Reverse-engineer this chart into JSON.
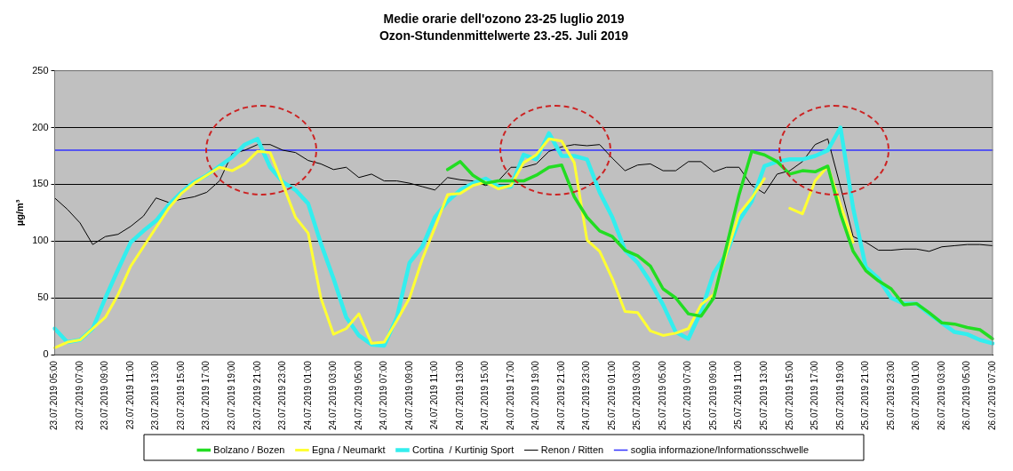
{
  "chart_data": {
    "type": "line",
    "title": "Medie orarie dell'ozono 23-25 luglio 2019",
    "subtitle": "Ozon-Stundenmittelwerte 23.-25. Juli 2019",
    "ylabel": "µg/m³",
    "categories": [
      "23.07.2019 05:00",
      null,
      "23.07.2019 07:00",
      null,
      "23.07.2019 09:00",
      null,
      "23.07.2019 11:00",
      null,
      "23.07.2019 13:00",
      null,
      "23.07.2019 15:00",
      null,
      "23.07.2019 17:00",
      null,
      "23.07.2019 19:00",
      null,
      "23.07.2019 21:00",
      null,
      "23.07.2019 23:00",
      null,
      "24.07.2019 01:00",
      null,
      "24.07.2019 03:00",
      null,
      "24.07.2019 05:00",
      null,
      "24.07.2019 07:00",
      null,
      "24.07.2019 09:00",
      null,
      "24.07.2019 11:00",
      null,
      "24.07.2019 13:00",
      null,
      "24.07.2019 15:00",
      null,
      "24.07.2019 17:00",
      null,
      "24.07.2019 19:00",
      null,
      "24.07.2019 21:00",
      null,
      "24.07.2019 23:00",
      null,
      "25.07.2019 01:00",
      null,
      "25.07.2019 03:00",
      null,
      "25.07.2019 05:00",
      null,
      "25.07.2019 07:00",
      null,
      "25.07.2019 09:00",
      null,
      "25.07.2019 11:00",
      null,
      "25.07.2019 13:00",
      null,
      "25.07.2019 15:00",
      null,
      "25.07.2019 17:00",
      null,
      "25.07.2019 19:00",
      null,
      "25.07.2019 21:00",
      null,
      "25.07.2019 23:00",
      null,
      "26.07.2019 01:00",
      null,
      "26.07.2019 03:00",
      null,
      "26.07.2019 05:00",
      null,
      "26.07.2019 07:00"
    ],
    "series": [
      {
        "name": "Bolzano / Bozen",
        "color": "#22dd22",
        "values": [
          null,
          null,
          null,
          null,
          null,
          null,
          null,
          null,
          null,
          null,
          null,
          null,
          null,
          null,
          null,
          null,
          null,
          null,
          null,
          null,
          null,
          null,
          null,
          null,
          null,
          null,
          null,
          null,
          null,
          null,
          null,
          163,
          170,
          158,
          151,
          153,
          153,
          153,
          158,
          165,
          167,
          139,
          121,
          109,
          104,
          92,
          87,
          78,
          58,
          50,
          36,
          34,
          50,
          95,
          141,
          179,
          176,
          170,
          159,
          162,
          161,
          166,
          124,
          91,
          74,
          65,
          58,
          44,
          45,
          37,
          28,
          27,
          24,
          22,
          14
        ]
      },
      {
        "name": "Egna / Neumarkt",
        "color": "#ffff33",
        "values": [
          6,
          11,
          13,
          23,
          33,
          53,
          78,
          95,
          112,
          129,
          142,
          151,
          158,
          165,
          162,
          168,
          179,
          178,
          150,
          121,
          107,
          50,
          18,
          23,
          36,
          10,
          11,
          30,
          50,
          84,
          112,
          141,
          142,
          149,
          152,
          146,
          149,
          169,
          176,
          190,
          188,
          169,
          101,
          91,
          67,
          38,
          37,
          21,
          17,
          19,
          23,
          44,
          53,
          89,
          124,
          138,
          155,
          null,
          129,
          124,
          153,
          166,
          132,
          99,
          null,
          null,
          null,
          null,
          null,
          null,
          null,
          null,
          null,
          null,
          null
        ]
      },
      {
        "name": "Cortina  / Kurtinig Sport",
        "color": "#33eeee",
        "values": [
          23,
          11,
          13,
          23,
          50,
          75,
          99,
          109,
          118,
          132,
          143,
          152,
          158,
          166,
          174,
          185,
          190,
          165,
          152,
          145,
          133,
          98,
          67,
          33,
          17,
          9,
          8,
          33,
          81,
          95,
          121,
          135,
          145,
          151,
          155,
          148,
          148,
          176,
          172,
          195,
          175,
          175,
          172,
          143,
          121,
          92,
          81,
          64,
          44,
          20,
          14,
          38,
          72,
          89,
          118,
          135,
          166,
          170,
          172,
          172,
          175,
          180,
          200,
          129,
          77,
          67,
          50,
          45,
          45,
          36,
          28,
          20,
          18,
          13,
          10
        ]
      },
      {
        "name": "Renon / Ritten",
        "color": "#000000",
        "values": [
          138,
          128,
          116,
          97,
          104,
          106,
          113,
          122,
          138,
          134,
          137,
          139,
          143,
          153,
          177,
          180,
          185,
          185,
          180,
          178,
          171,
          168,
          163,
          165,
          156,
          159,
          153,
          153,
          151,
          148,
          145,
          156,
          154,
          153,
          149,
          153,
          165,
          165,
          168,
          179,
          183,
          185,
          184,
          185,
          173,
          162,
          167,
          168,
          162,
          162,
          170,
          170,
          161,
          165,
          165,
          149,
          142,
          159,
          162,
          170,
          185,
          190,
          148,
          104,
          99,
          92,
          92,
          93,
          93,
          91,
          95,
          96,
          97,
          97,
          96
        ]
      },
      {
        "name": "soglia informazione/Informationsschwelle",
        "color": "#3333ff",
        "values": [
          180,
          180,
          180,
          180,
          180,
          180,
          180,
          180,
          180,
          180,
          180,
          180,
          180,
          180,
          180,
          180,
          180,
          180,
          180,
          180,
          180,
          180,
          180,
          180,
          180,
          180,
          180,
          180,
          180,
          180,
          180,
          180,
          180,
          180,
          180,
          180,
          180,
          180,
          180,
          180,
          180,
          180,
          180,
          180,
          180,
          180,
          180,
          180,
          180,
          180,
          180,
          180,
          180,
          180,
          180,
          180,
          180,
          180,
          180,
          180,
          180,
          180,
          180,
          180,
          180,
          180,
          180,
          180,
          180,
          180,
          180,
          180,
          180,
          180,
          180
        ]
      }
    ],
    "ylim": [
      0,
      250
    ],
    "yticks": [
      0,
      50,
      100,
      150,
      200,
      250
    ],
    "grid": "y",
    "legend": "bottom",
    "marker": "none",
    "line_style": "solid"
  }
}
